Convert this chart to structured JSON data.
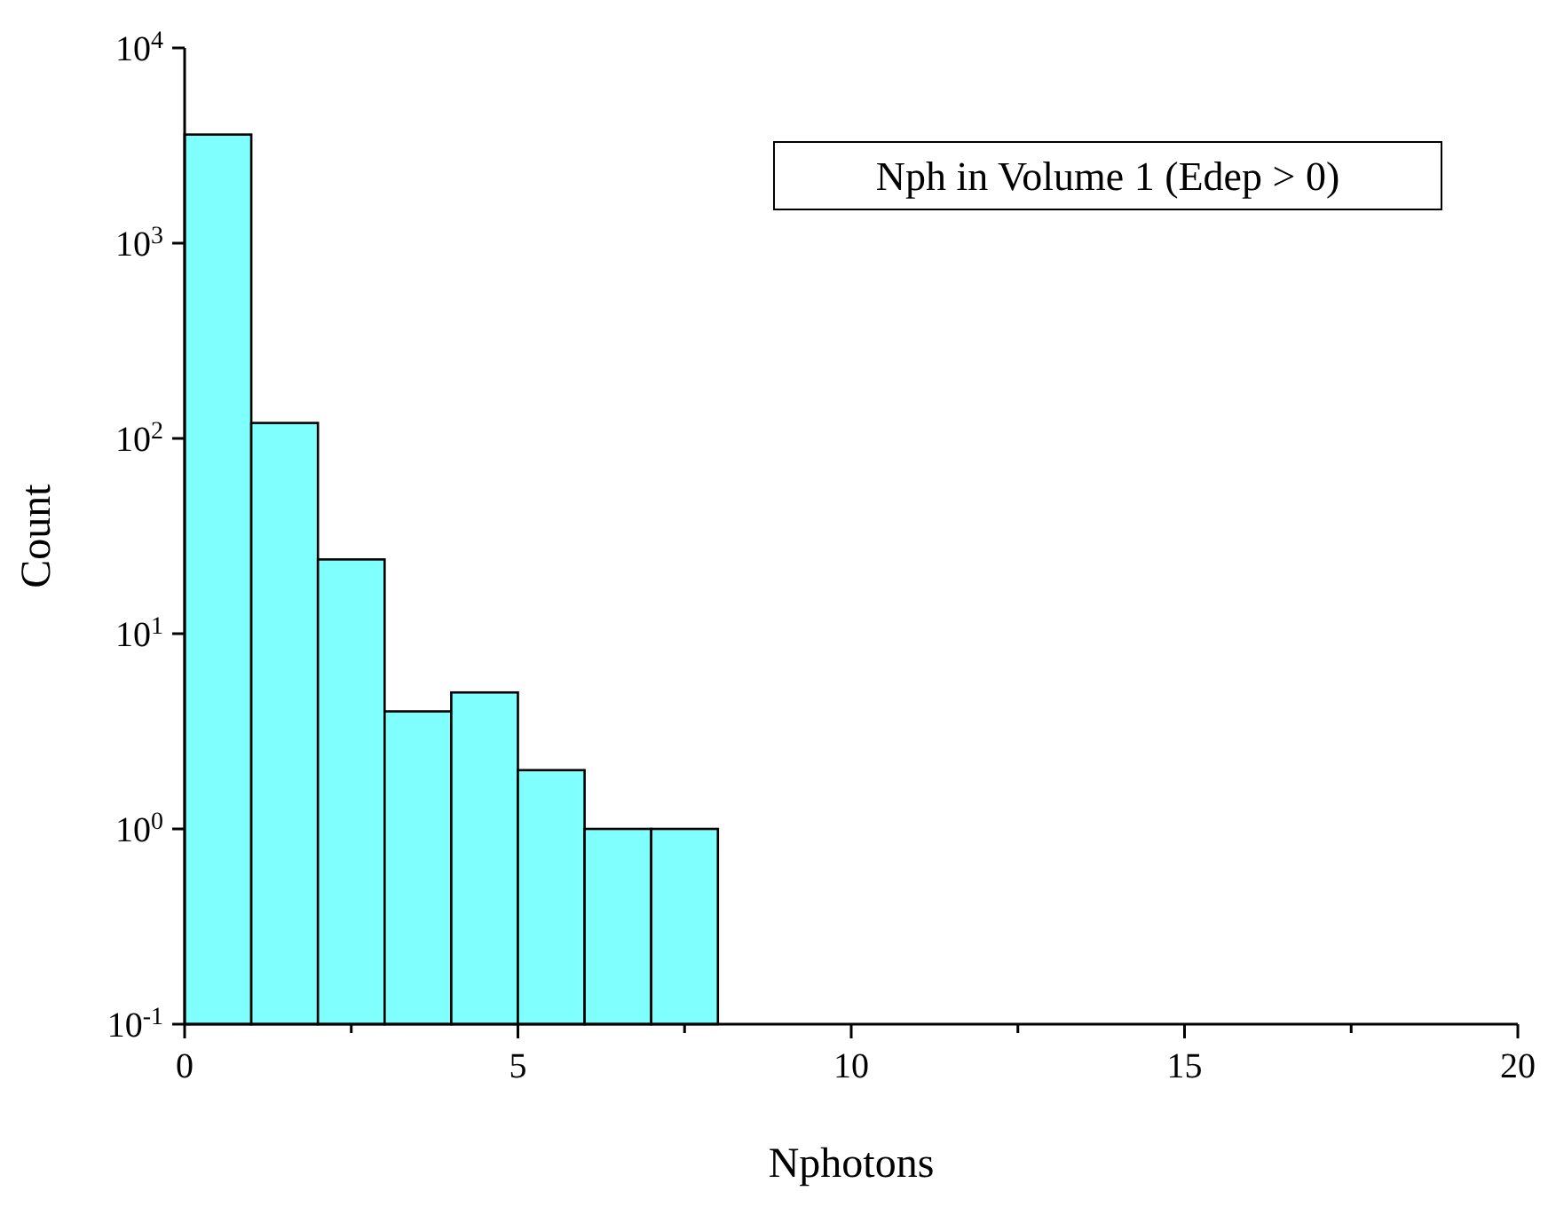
{
  "chart_data": {
    "type": "histogram",
    "xlabel": "Nphotons",
    "ylabel": "Count",
    "bins": [
      0,
      1,
      2,
      3,
      4,
      5,
      6,
      7,
      8
    ],
    "values": [
      3600,
      120,
      24,
      4,
      5,
      2,
      1,
      1
    ],
    "color": "#80ffff",
    "log": "y",
    "grid": false,
    "xlim": [
      0,
      20
    ],
    "xticks": [
      0,
      {
        "value": 2.5,
        "label": null
      },
      5,
      {
        "value": 7.5,
        "label": null
      },
      10,
      {
        "value": 12.5,
        "label": null
      },
      15,
      {
        "value": 17.5,
        "label": null
      },
      20
    ],
    "ylim": [
      0.1,
      10000
    ],
    "yticks": [
      {
        "value": 0.1,
        "label": "10$^{-1}$"
      },
      {
        "value": 1,
        "label": "10$^{0}$"
      },
      {
        "value": 10,
        "label": "10$^{1}$"
      },
      {
        "value": 100,
        "label": "10$^{2}$"
      },
      {
        "value": 1000,
        "label": "10$^{3}$"
      },
      {
        "value": 10000,
        "label": "10$^{4}$"
      }
    ],
    "annotations": [
      "Nph in Volume 1 (Edep > 0)"
    ]
  }
}
